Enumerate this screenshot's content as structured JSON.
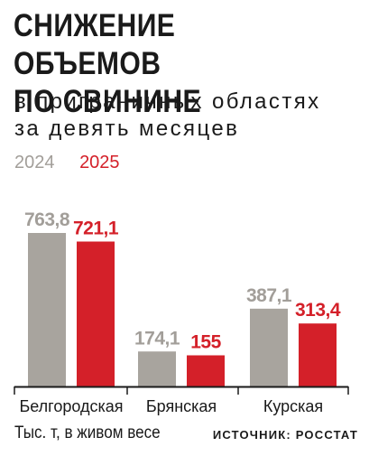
{
  "title_line1": "СНИЖЕНИЕ ОБЪЕМОВ",
  "title_line2": "ПО СВИНИНЕ",
  "subtitle_line1": "в приграничных областях",
  "subtitle_line2": "за девять месяцев",
  "unit_label": "Тыс. т, в живом весе",
  "source": "ИСТОЧНИК: РОССТАТ",
  "colors": {
    "series_2024": "#a8a49e",
    "series_2025": "#d42029",
    "label_2024": "#a29e99",
    "label_2025": "#d42029",
    "axis": "#1a1a1a"
  },
  "chart_data": {
    "type": "bar",
    "categories": [
      "Белгородская",
      "Брянская",
      "Курская"
    ],
    "series": [
      {
        "name": "2024",
        "values": [
          763.8,
          174.1,
          387.1
        ],
        "labels": [
          "763,8",
          "174,1",
          "387,1"
        ]
      },
      {
        "name": "2025",
        "values": [
          721.1,
          155,
          313.4
        ],
        "labels": [
          "721,1",
          "155",
          "313,4"
        ]
      }
    ],
    "ylim": [
      0,
      763.8
    ],
    "grid": false,
    "legend": "top-left"
  }
}
